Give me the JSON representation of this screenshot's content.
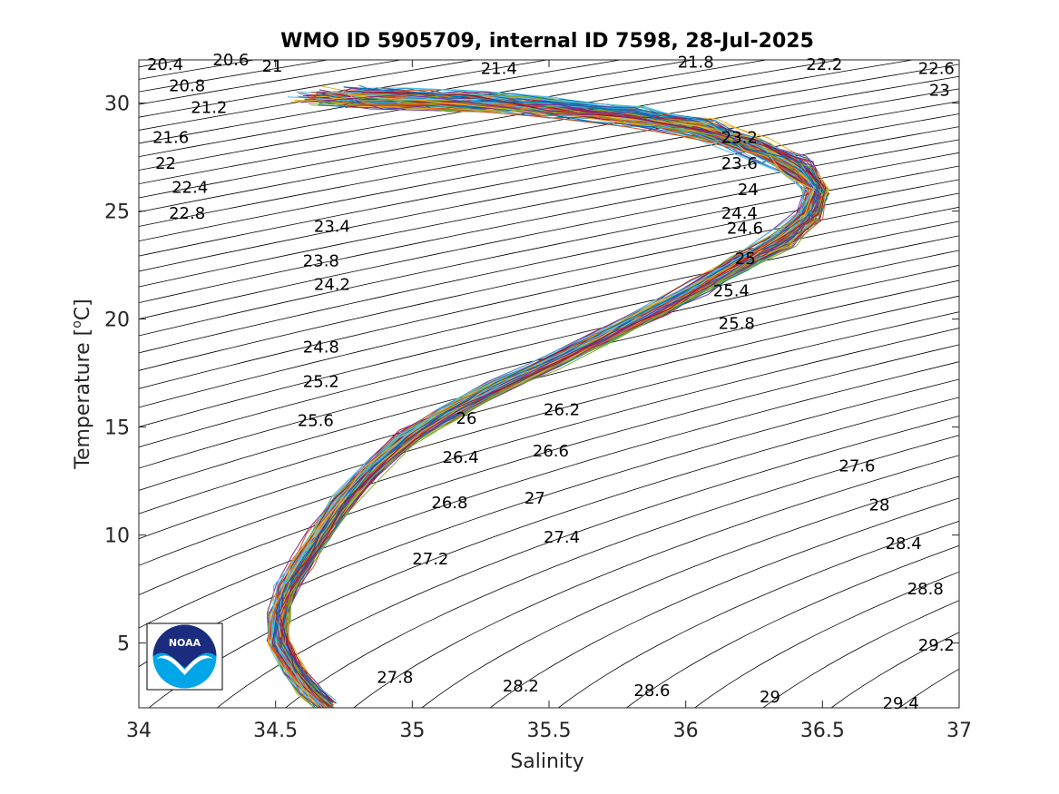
{
  "chart_data": {
    "type": "line",
    "title": "WMO ID 5905709, internal ID 7598, 28-Jul-2025",
    "xlabel": "Salinity",
    "ylabel": "Temperature [",
    "ylabel_degree": "o",
    "ylabel_unit": "C]",
    "xlim": [
      34,
      37
    ],
    "ylim": [
      2,
      32
    ],
    "xticks": [
      34,
      34.5,
      35,
      35.5,
      36,
      36.5,
      37
    ],
    "xtick_labels": [
      "34",
      "34.5",
      "35",
      "35.5",
      "36",
      "36.5",
      "37"
    ],
    "yticks": [
      5,
      10,
      15,
      20,
      25,
      30
    ],
    "ytick_labels": [
      "5",
      "10",
      "15",
      "20",
      "25",
      "30"
    ],
    "grid": false,
    "density_isopycnals": {
      "min": 20.4,
      "max": 29.4,
      "step": 0.2,
      "line_color": "#000000"
    },
    "contour_labels": [
      {
        "text": "20.4",
        "s": 34.03,
        "t": 31.8
      },
      {
        "text": "20.6",
        "s": 34.27,
        "t": 32.0
      },
      {
        "text": "21",
        "s": 34.45,
        "t": 31.7
      },
      {
        "text": "21.4",
        "s": 35.25,
        "t": 31.6
      },
      {
        "text": "21.8",
        "s": 35.97,
        "t": 31.9
      },
      {
        "text": "22.2",
        "s": 36.44,
        "t": 31.8
      },
      {
        "text": "22.6",
        "s": 36.85,
        "t": 31.6
      },
      {
        "text": "23",
        "s": 36.89,
        "t": 30.6
      },
      {
        "text": "20.8",
        "s": 34.11,
        "t": 30.8
      },
      {
        "text": "21.2",
        "s": 34.19,
        "t": 29.8
      },
      {
        "text": "21.6",
        "s": 34.05,
        "t": 28.4
      },
      {
        "text": "22",
        "s": 34.06,
        "t": 27.2
      },
      {
        "text": "22.4",
        "s": 34.12,
        "t": 26.1
      },
      {
        "text": "22.8",
        "s": 34.11,
        "t": 24.9
      },
      {
        "text": "23.2",
        "s": 36.13,
        "t": 28.4
      },
      {
        "text": "23.6",
        "s": 36.13,
        "t": 27.2
      },
      {
        "text": "24",
        "s": 36.19,
        "t": 26.0
      },
      {
        "text": "24.4",
        "s": 36.13,
        "t": 24.9
      },
      {
        "text": "24.6",
        "s": 36.15,
        "t": 24.2
      },
      {
        "text": "25",
        "s": 36.18,
        "t": 22.8
      },
      {
        "text": "25.4",
        "s": 36.1,
        "t": 21.3
      },
      {
        "text": "25.8",
        "s": 36.12,
        "t": 19.8
      },
      {
        "text": "23.4",
        "s": 34.64,
        "t": 24.3
      },
      {
        "text": "23.8",
        "s": 34.6,
        "t": 22.7
      },
      {
        "text": "24.2",
        "s": 34.64,
        "t": 21.6
      },
      {
        "text": "24.8",
        "s": 34.6,
        "t": 18.7
      },
      {
        "text": "25.2",
        "s": 34.6,
        "t": 17.1
      },
      {
        "text": "25.6",
        "s": 34.58,
        "t": 15.3
      },
      {
        "text": "26",
        "s": 35.16,
        "t": 15.4
      },
      {
        "text": "26.2",
        "s": 35.48,
        "t": 15.8
      },
      {
        "text": "26.4",
        "s": 35.11,
        "t": 13.6
      },
      {
        "text": "26.6",
        "s": 35.44,
        "t": 13.9
      },
      {
        "text": "26.8",
        "s": 35.07,
        "t": 11.5
      },
      {
        "text": "27",
        "s": 35.41,
        "t": 11.7
      },
      {
        "text": "27.2",
        "s": 35.0,
        "t": 8.9
      },
      {
        "text": "27.4",
        "s": 35.48,
        "t": 9.9
      },
      {
        "text": "27.6",
        "s": 36.56,
        "t": 13.2
      },
      {
        "text": "28",
        "s": 36.67,
        "t": 11.4
      },
      {
        "text": "28.4",
        "s": 36.73,
        "t": 9.6
      },
      {
        "text": "28.8",
        "s": 36.81,
        "t": 7.5
      },
      {
        "text": "29.2",
        "s": 36.85,
        "t": 4.9
      },
      {
        "text": "29.4",
        "s": 36.72,
        "t": 2.2
      },
      {
        "text": "27.8",
        "s": 34.87,
        "t": 3.4
      },
      {
        "text": "28.2",
        "s": 35.33,
        "t": 3.0
      },
      {
        "text": "28.6",
        "s": 35.81,
        "t": 2.8
      },
      {
        "text": "29",
        "s": 36.27,
        "t": 2.5
      }
    ],
    "profiles": {
      "count": 120,
      "mean_profile": [
        {
          "s": 34.68,
          "t": 2.1
        },
        {
          "s": 34.62,
          "t": 2.8
        },
        {
          "s": 34.56,
          "t": 3.8
        },
        {
          "s": 34.51,
          "t": 5.0
        },
        {
          "s": 34.51,
          "t": 6.3
        },
        {
          "s": 34.54,
          "t": 7.5
        },
        {
          "s": 34.6,
          "t": 8.8
        },
        {
          "s": 34.66,
          "t": 10.0
        },
        {
          "s": 34.74,
          "t": 11.5
        },
        {
          "s": 34.85,
          "t": 13.0
        },
        {
          "s": 34.98,
          "t": 14.5
        },
        {
          "s": 35.12,
          "t": 15.6
        },
        {
          "s": 35.3,
          "t": 16.8
        },
        {
          "s": 35.5,
          "t": 18.0
        },
        {
          "s": 35.7,
          "t": 19.2
        },
        {
          "s": 35.9,
          "t": 20.5
        },
        {
          "s": 36.05,
          "t": 21.5
        },
        {
          "s": 36.2,
          "t": 22.6
        },
        {
          "s": 36.35,
          "t": 23.7
        },
        {
          "s": 36.45,
          "t": 24.8
        },
        {
          "s": 36.48,
          "t": 26.0
        },
        {
          "s": 36.4,
          "t": 27.0
        },
        {
          "s": 36.25,
          "t": 28.0
        },
        {
          "s": 36.05,
          "t": 28.8
        },
        {
          "s": 35.8,
          "t": 29.4
        },
        {
          "s": 35.5,
          "t": 29.8
        },
        {
          "s": 35.2,
          "t": 30.1
        },
        {
          "s": 34.9,
          "t": 30.2
        },
        {
          "s": 34.7,
          "t": 30.3
        }
      ],
      "colors": [
        "#0072BD",
        "#D95319",
        "#EDB120",
        "#7E2F8E",
        "#77AC30",
        "#4DBEEE",
        "#A2142F"
      ]
    },
    "logo": {
      "text": "NOAA",
      "position": "bottom-left"
    }
  }
}
